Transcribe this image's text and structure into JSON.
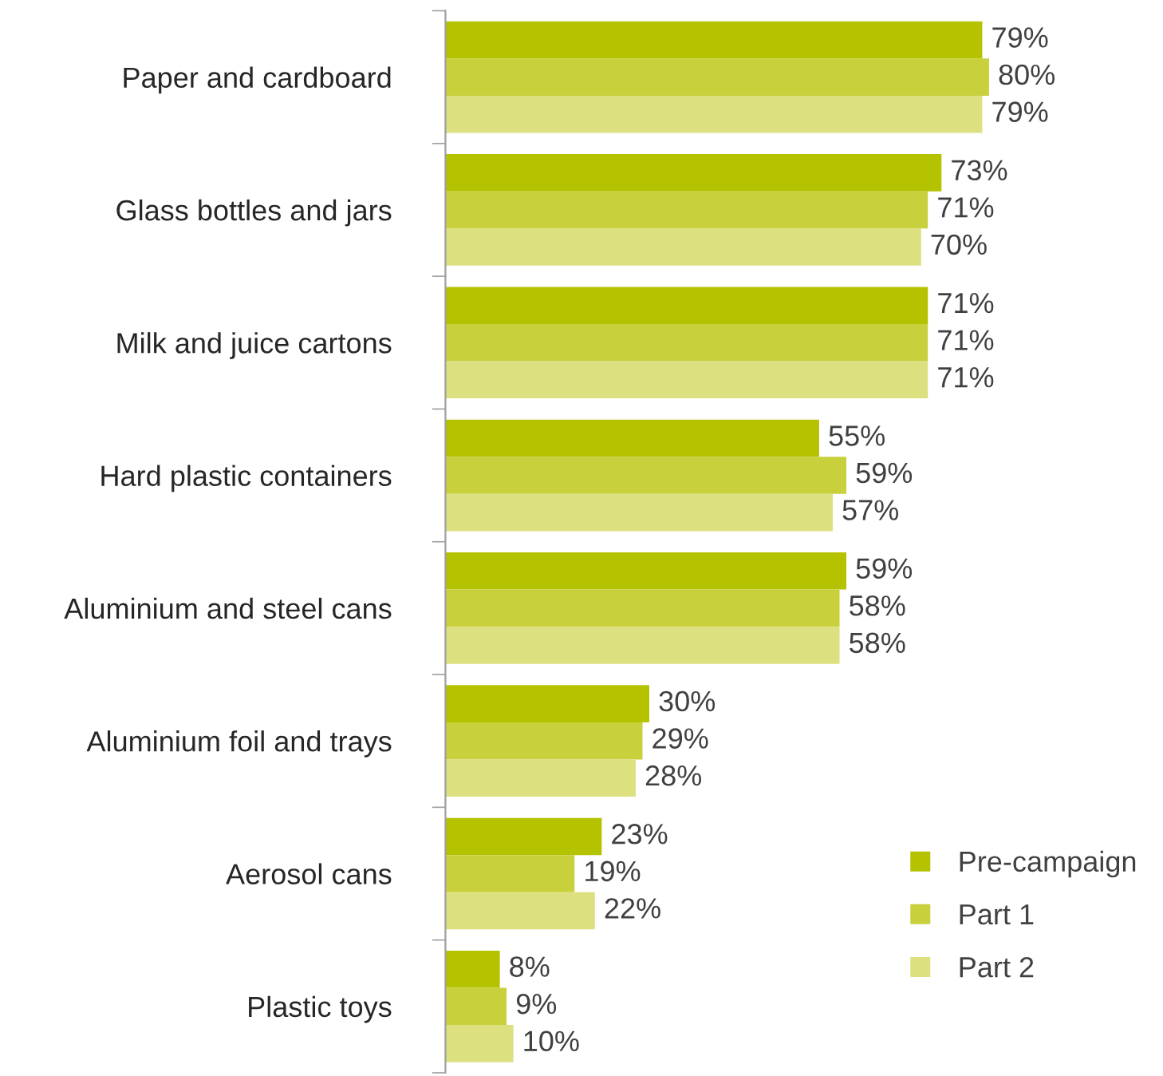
{
  "chart_data": {
    "type": "bar",
    "orientation": "horizontal",
    "categories": [
      "Paper and cardboard",
      "Glass bottles and jars",
      "Milk and juice cartons",
      "Hard plastic containers",
      "Aluminium and steel cans",
      "Aluminium foil and trays",
      "Aerosol cans",
      "Plastic toys"
    ],
    "series": [
      {
        "name": "Pre-campaign",
        "color": "#b5c200",
        "values": [
          79,
          73,
          71,
          55,
          59,
          30,
          23,
          8
        ],
        "value_labels": [
          "79%",
          "73%",
          "71%",
          "55%",
          "59%",
          "30%",
          "23%",
          "8%"
        ]
      },
      {
        "name": "Part 1",
        "color": "#c8d03c",
        "values": [
          80,
          71,
          71,
          59,
          58,
          29,
          19,
          9
        ],
        "value_labels": [
          "80%",
          "71%",
          "71%",
          "59%",
          "58%",
          "29%",
          "19%",
          "9%"
        ]
      },
      {
        "name": "Part 2",
        "color": "#dce07e",
        "values": [
          79,
          70,
          71,
          57,
          58,
          28,
          22,
          10
        ],
        "value_labels": [
          "79%",
          "70%",
          "71%",
          "57%",
          "58%",
          "28%",
          "22%",
          "10%"
        ]
      }
    ],
    "legend": "bottom right",
    "grid": false
  }
}
